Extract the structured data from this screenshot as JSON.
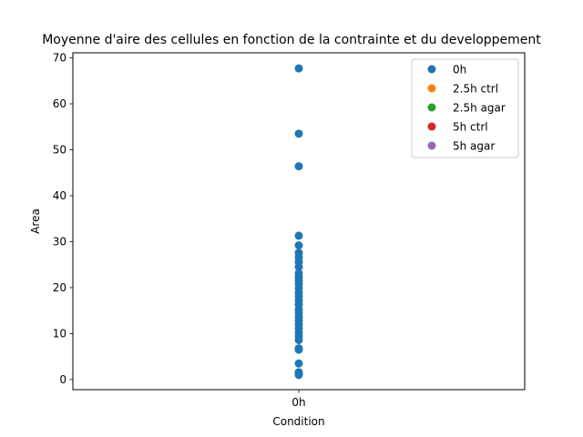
{
  "chart_data": {
    "type": "scatter",
    "title": "Moyenne d'aire des cellules en fonction de la contrainte et du developpement",
    "xlabel": "Condition",
    "ylabel": "Area",
    "categories": [
      "0h"
    ],
    "ylim": [
      -2.2,
      71.1
    ],
    "yticks": [
      0,
      10,
      20,
      30,
      40,
      50,
      60,
      70
    ],
    "grid": false,
    "legend_position": "upper-right",
    "series": [
      {
        "name": "0h",
        "color": "#1f77b4",
        "x": "0h",
        "values": [
          67.7,
          53.5,
          46.4,
          31.3,
          29.2,
          27.6,
          26.6,
          25.6,
          24.5,
          23.1,
          22.3,
          21.5,
          20.8,
          19.9,
          18.9,
          18.1,
          17.2,
          16.3,
          15.2,
          14.5,
          13.6,
          12.8,
          12.0,
          11.1,
          10.2,
          9.5,
          8.6,
          6.8,
          6.5,
          3.5,
          1.6,
          1.2,
          1.0
        ]
      },
      {
        "name": "2.5h ctrl",
        "color": "#ff7f0e",
        "x": "0h",
        "values": []
      },
      {
        "name": "2.5h agar",
        "color": "#2ca02c",
        "x": "0h",
        "values": []
      },
      {
        "name": "5h ctrl",
        "color": "#d62728",
        "x": "0h",
        "values": []
      },
      {
        "name": "5h agar",
        "color": "#9467bd",
        "x": "0h",
        "values": []
      }
    ]
  }
}
